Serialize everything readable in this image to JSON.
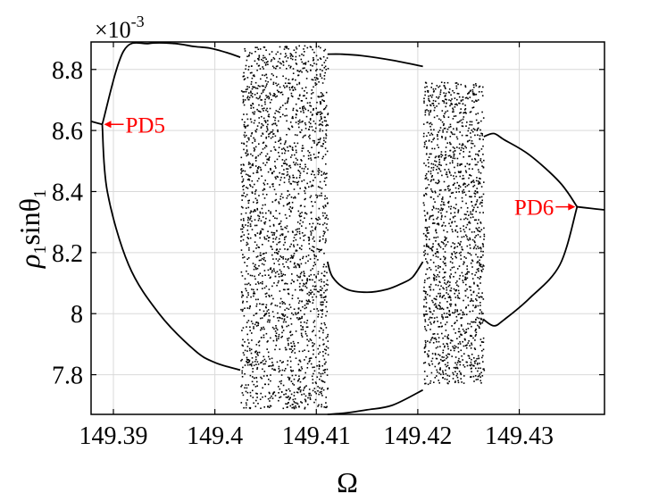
{
  "chart_data": {
    "type": "scatter",
    "title": "",
    "xlabel": "Ω",
    "ylabel_parts": {
      "base1": "ρ",
      "sub1": "1",
      "mid": "sinθ",
      "sub2": "1"
    },
    "y_multiplier": {
      "base": "×10",
      "exp": "-3"
    },
    "xlim": [
      149.3878,
      149.4384
    ],
    "ylim": [
      7.67,
      8.89
    ],
    "grid": true,
    "x_ticks": [
      149.39,
      149.4,
      149.41,
      149.42,
      149.43
    ],
    "x_tick_labels": [
      "149.39",
      "149.4",
      "149.41",
      "149.42",
      "149.43"
    ],
    "y_ticks": [
      7.8,
      8.0,
      8.2,
      8.4,
      8.6,
      8.8
    ],
    "y_tick_labels": [
      "7.8",
      "8",
      "8.2",
      "8.4",
      "8.6",
      "8.8"
    ],
    "annotations": [
      {
        "text": "PD5",
        "x": 149.3889,
        "y": 8.62,
        "side": "right"
      },
      {
        "text": "PD6",
        "x": 149.4357,
        "y": 8.35,
        "side": "left"
      }
    ],
    "series": [
      {
        "kind": "periodic",
        "x": [
          149.3878,
          149.3889
        ],
        "y": [
          8.63,
          8.62
        ]
      },
      {
        "kind": "periodic",
        "x": [
          149.3889,
          149.391,
          149.3935,
          149.396,
          149.398,
          149.3995,
          149.4012,
          149.4025
        ],
        "y": [
          8.62,
          8.86,
          8.885,
          8.885,
          8.875,
          8.87,
          8.855,
          8.84
        ]
      },
      {
        "kind": "periodic",
        "x": [
          149.3889,
          149.3894,
          149.3915,
          149.3945,
          149.398,
          149.4,
          149.4025
        ],
        "y": [
          8.62,
          8.4,
          8.16,
          8.0,
          7.88,
          7.84,
          7.815
        ]
      },
      {
        "kind": "periodic",
        "x": [
          149.4111,
          149.4125,
          149.4145,
          149.4175,
          149.4205
        ],
        "y": [
          8.85,
          8.85,
          8.845,
          8.83,
          8.81
        ]
      },
      {
        "kind": "periodic",
        "x": [
          149.4111,
          149.4116,
          149.413,
          149.415,
          149.417,
          149.4185,
          149.4195,
          149.4205
        ],
        "y": [
          8.17,
          8.12,
          8.08,
          8.07,
          8.08,
          8.1,
          8.12,
          8.17
        ]
      },
      {
        "kind": "periodic",
        "x": [
          149.4111,
          149.413,
          149.415,
          149.4175,
          149.4205
        ],
        "y": [
          7.67,
          7.675,
          7.685,
          7.7,
          7.75
        ]
      },
      {
        "kind": "periodic",
        "x": [
          149.4265,
          149.4275,
          149.4285,
          149.431,
          149.434,
          149.4357
        ],
        "y": [
          8.58,
          8.59,
          8.57,
          8.52,
          8.43,
          8.35
        ]
      },
      {
        "kind": "periodic",
        "x": [
          149.4265,
          149.4275,
          149.4285,
          149.431,
          149.434,
          149.4357
        ],
        "y": [
          7.98,
          7.96,
          7.98,
          8.05,
          8.16,
          8.35
        ]
      },
      {
        "kind": "periodic",
        "x": [
          149.4357,
          149.437,
          149.4384
        ],
        "y": [
          8.35,
          8.345,
          8.34
        ]
      }
    ],
    "chaotic_bands": [
      {
        "x_range": [
          149.4025,
          149.4111
        ],
        "y_ranges": [
          [
            7.69,
            8.88
          ]
        ],
        "density": 2200
      },
      {
        "x_range": [
          149.4205,
          149.4265
        ],
        "y_ranges": [
          [
            7.77,
            8.76
          ]
        ],
        "density": 1500
      }
    ]
  }
}
